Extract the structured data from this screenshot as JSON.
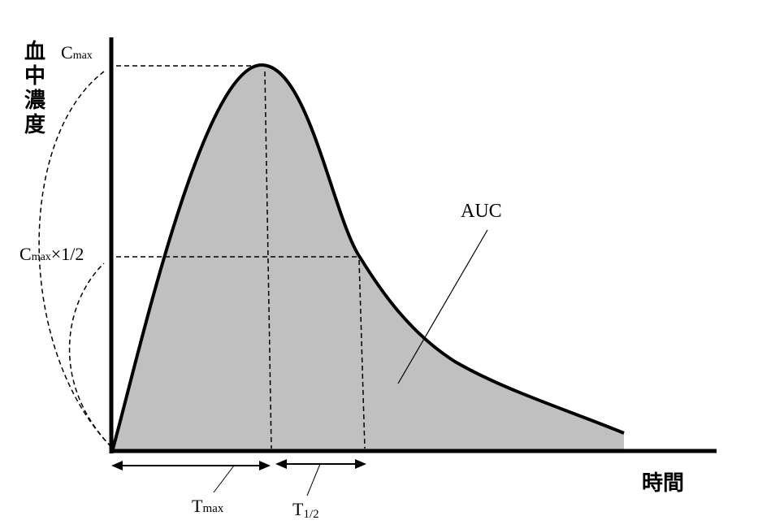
{
  "axes": {
    "y_label_chars": [
      "血",
      "中",
      "濃",
      "度"
    ],
    "x_label": "時間"
  },
  "labels": {
    "cmax_main": "C",
    "cmax_sub": "max",
    "chalf_main": "C",
    "chalf_sub": "max",
    "chalf_suffix": "×1/2",
    "auc": "AUC",
    "tmax_main": "T",
    "tmax_sub": "max",
    "thalf_main": "T",
    "thalf_sub": "1/2"
  },
  "colors": {
    "area_fill": "#c0c0c0",
    "line": "#000000"
  }
}
